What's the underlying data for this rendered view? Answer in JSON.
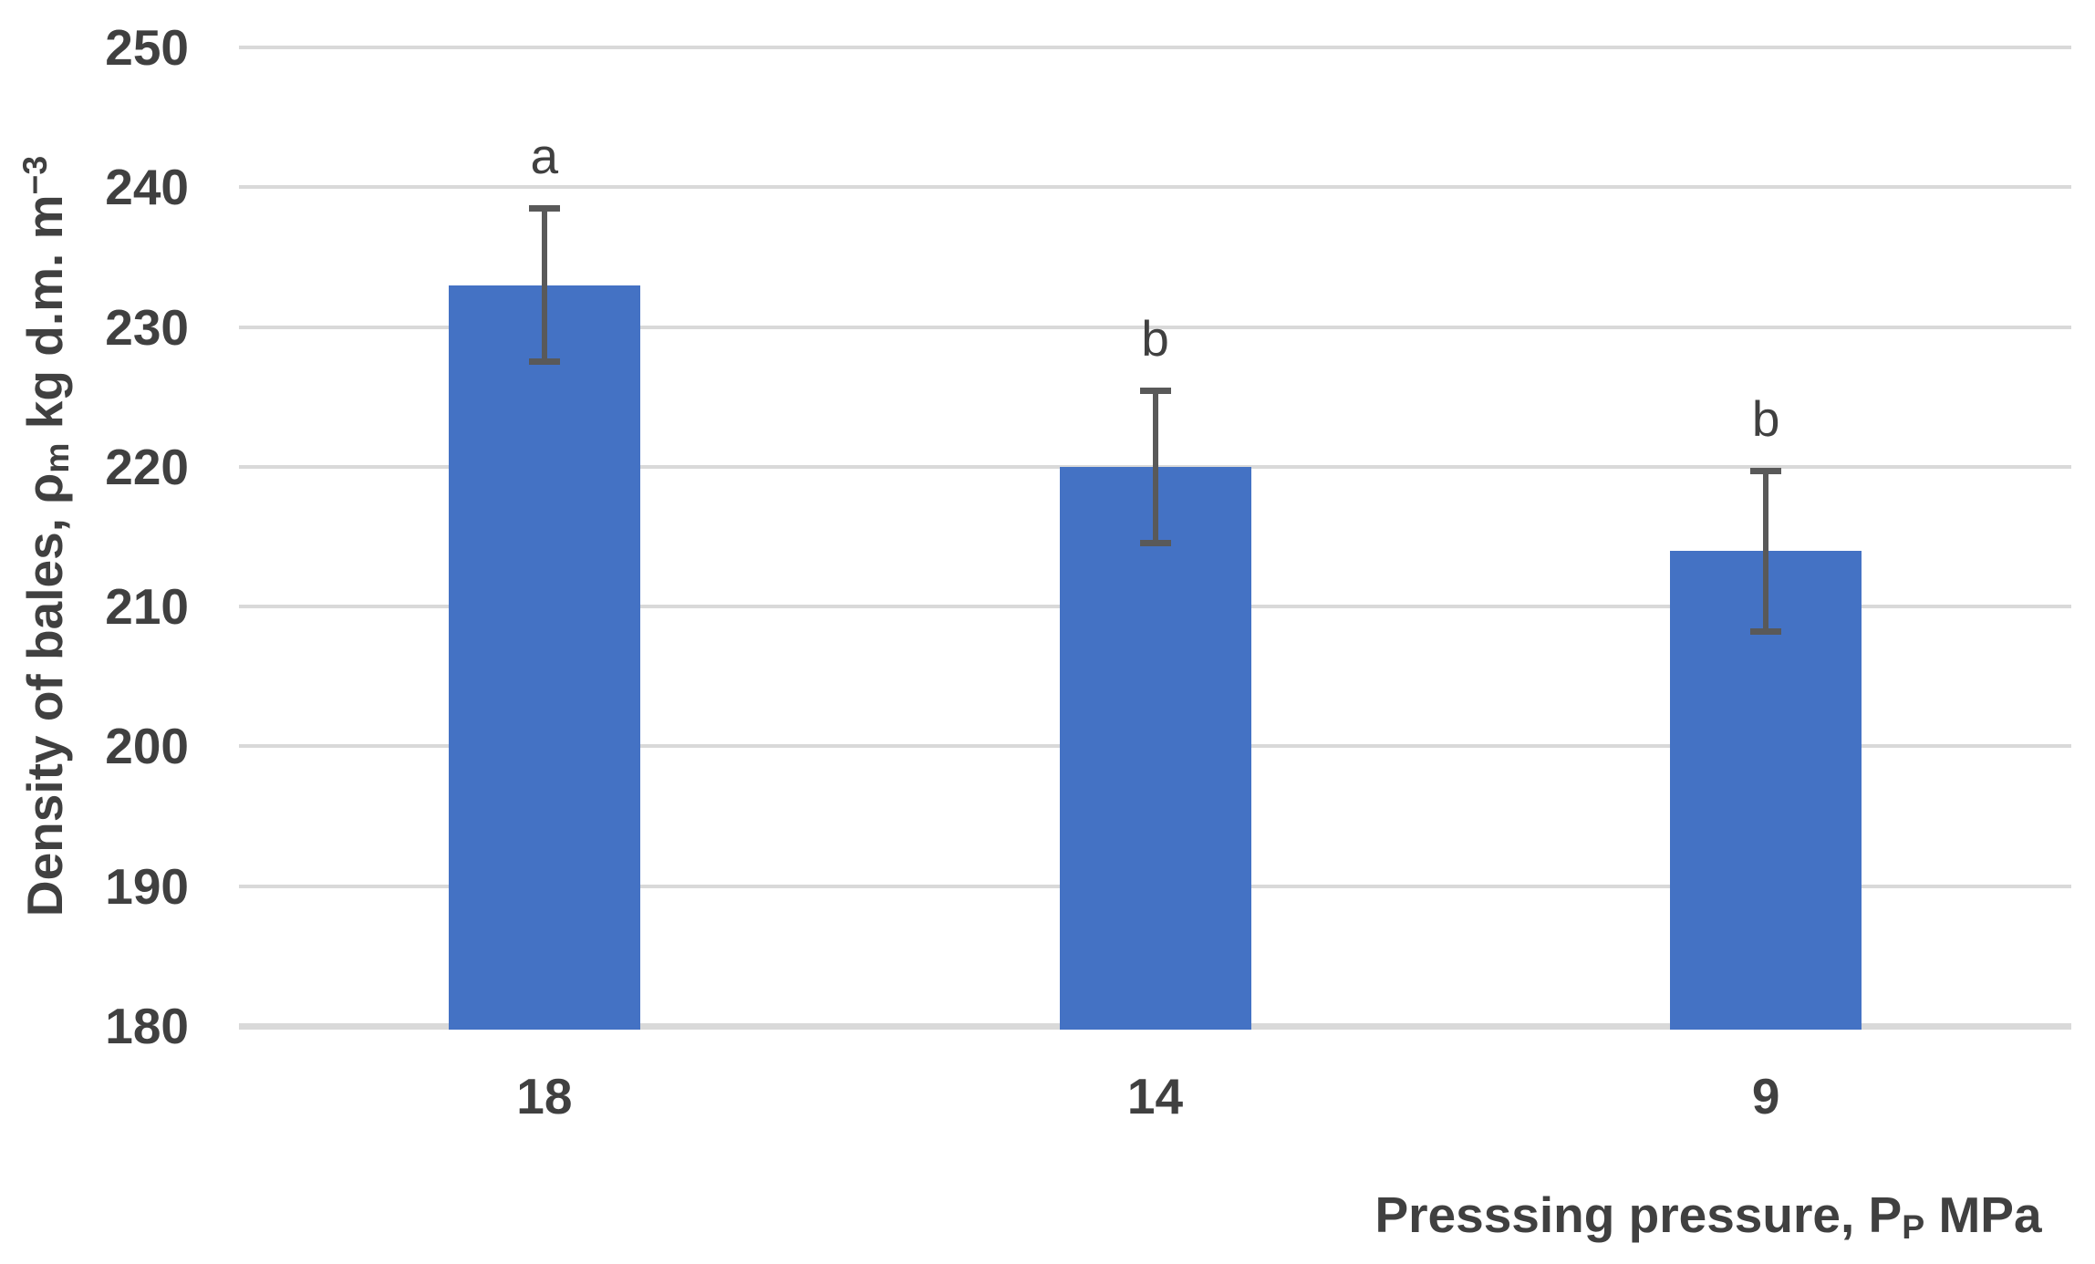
{
  "chart_data": {
    "type": "bar",
    "title": "",
    "categories": [
      "18",
      "14",
      "9"
    ],
    "values": [
      233,
      220,
      214
    ],
    "error_bars": {
      "upper": [
        238.5,
        225.5,
        219.7
      ],
      "lower": [
        227.5,
        214.5,
        208.2
      ]
    },
    "significance_letters": [
      "a",
      "b",
      "b"
    ],
    "xlabel": "Presssing pressure, Pₚ MPa",
    "xlabel_parts": [
      {
        "text": "Presssing pressure, P"
      },
      {
        "text": "P",
        "script": "sub"
      },
      {
        "text": " MPa"
      }
    ],
    "ylabel": "Density of bales, ρₘ kg d.m. m⁻³",
    "ylabel_parts": [
      {
        "text": "Density of bales, ρ"
      },
      {
        "text": "m",
        "script": "sub"
      },
      {
        "text": " kg d.m. m"
      },
      {
        "text": "−3",
        "script": "sup"
      }
    ],
    "y_axis": {
      "min": 180,
      "max": 250,
      "tick_step": 10,
      "ticks": [
        250,
        240,
        230,
        220,
        210,
        200,
        190,
        180
      ]
    },
    "x_axis": {
      "ticks": [
        "18",
        "14",
        "9"
      ]
    },
    "grid": true,
    "legend": false,
    "background": "#FFFFFF",
    "colors": {
      "bar": "#4472C4",
      "error_bar": "#595959",
      "gridline": "#D9D9D9",
      "axis_line": "#D9D9D9",
      "text": "#404040"
    }
  }
}
